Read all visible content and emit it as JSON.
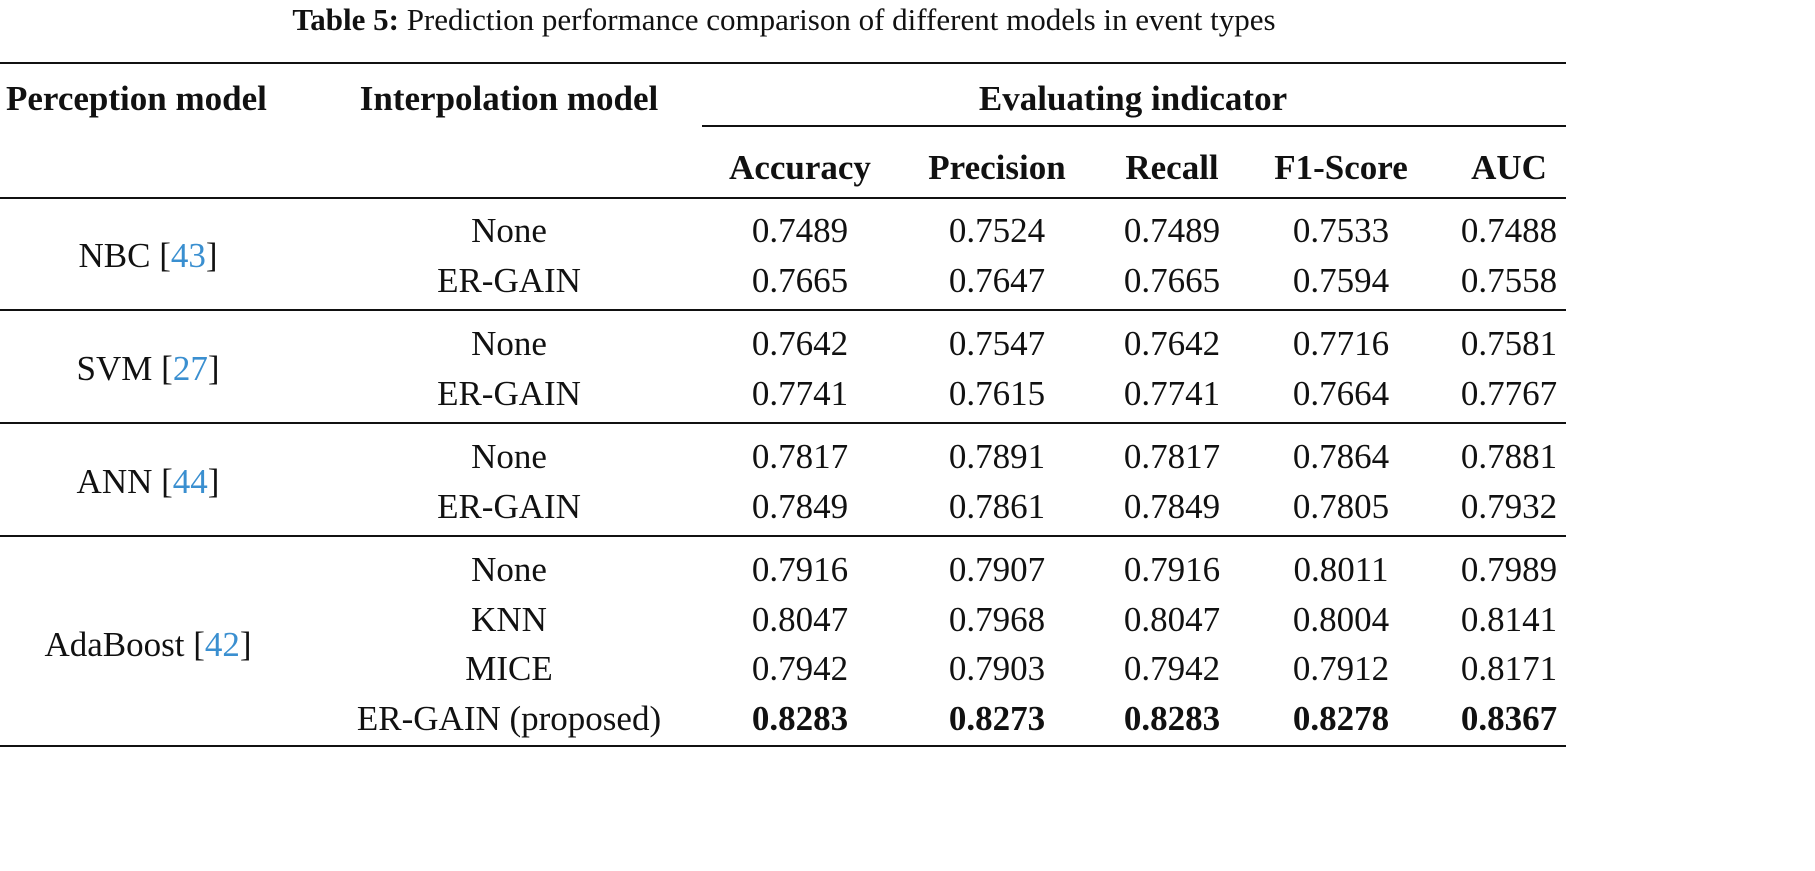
{
  "caption": {
    "label": "Table 5:",
    "text": "Prediction performance comparison of different models in event types"
  },
  "header": {
    "perception": "Perception model",
    "interpolation": "Interpolation model",
    "group": "Evaluating indicator",
    "metrics": [
      "Accuracy",
      "Precision",
      "Recall",
      "F1-Score",
      "AUC"
    ]
  },
  "groups": [
    {
      "model": "NBC",
      "ref": "43",
      "rows": [
        {
          "interp": "None",
          "values": [
            "0.7489",
            "0.7524",
            "0.7489",
            "0.7533",
            "0.7488"
          ]
        },
        {
          "interp": "ER-GAIN",
          "values": [
            "0.7665",
            "0.7647",
            "0.7665",
            "0.7594",
            "0.7558"
          ]
        }
      ]
    },
    {
      "model": "SVM",
      "ref": "27",
      "rows": [
        {
          "interp": "None",
          "values": [
            "0.7642",
            "0.7547",
            "0.7642",
            "0.7716",
            "0.7581"
          ]
        },
        {
          "interp": "ER-GAIN",
          "values": [
            "0.7741",
            "0.7615",
            "0.7741",
            "0.7664",
            "0.7767"
          ]
        }
      ]
    },
    {
      "model": "ANN",
      "ref": "44",
      "rows": [
        {
          "interp": "None",
          "values": [
            "0.7817",
            "0.7891",
            "0.7817",
            "0.7864",
            "0.7881"
          ]
        },
        {
          "interp": "ER-GAIN",
          "values": [
            "0.7849",
            "0.7861",
            "0.7849",
            "0.7805",
            "0.7932"
          ]
        }
      ]
    },
    {
      "model": "AdaBoost",
      "ref": "42",
      "rows": [
        {
          "interp": "None",
          "values": [
            "0.7916",
            "0.7907",
            "0.7916",
            "0.8011",
            "0.7989"
          ]
        },
        {
          "interp": "KNN",
          "values": [
            "0.8047",
            "0.7968",
            "0.8047",
            "0.8004",
            "0.8141"
          ]
        },
        {
          "interp": "MICE",
          "values": [
            "0.7942",
            "0.7903",
            "0.7942",
            "0.7912",
            "0.8171"
          ]
        },
        {
          "interp": "ER-GAIN (proposed)",
          "values": [
            "0.8283",
            "0.8273",
            "0.8283",
            "0.8278",
            "0.8367"
          ],
          "bold": true
        }
      ]
    }
  ]
}
